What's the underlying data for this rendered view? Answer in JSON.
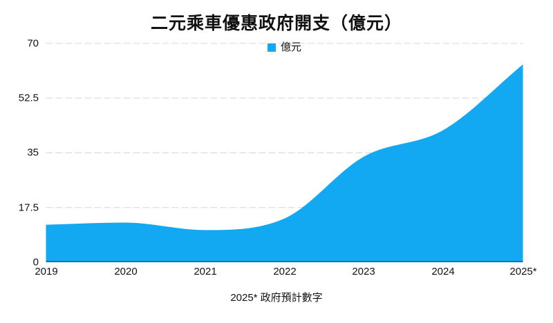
{
  "chart_data": {
    "type": "area",
    "title": "二元乘車優惠政府開支（億元）",
    "legend": "億元",
    "legend_position": "top-center",
    "categories": [
      "2019",
      "2020",
      "2021",
      "2022",
      "2023",
      "2024",
      "2025*"
    ],
    "values": [
      12,
      12.7,
      10.3,
      14,
      33.8,
      42.3,
      63.3
    ],
    "xlabel": "",
    "ylabel": "",
    "ylim": [
      0,
      70
    ],
    "y_ticks": [
      0,
      17.5,
      35,
      52.5,
      70
    ],
    "y_tick_labels": [
      "0",
      "17.5",
      "35",
      "52.5",
      "70"
    ],
    "grid": "horizontal-dashed",
    "footnote": "2025* 政府預計數字",
    "colors": {
      "area": "#12a8f2",
      "baseline": "#1273b5",
      "grid": "#d6d6d6",
      "text": "#111111"
    }
  }
}
